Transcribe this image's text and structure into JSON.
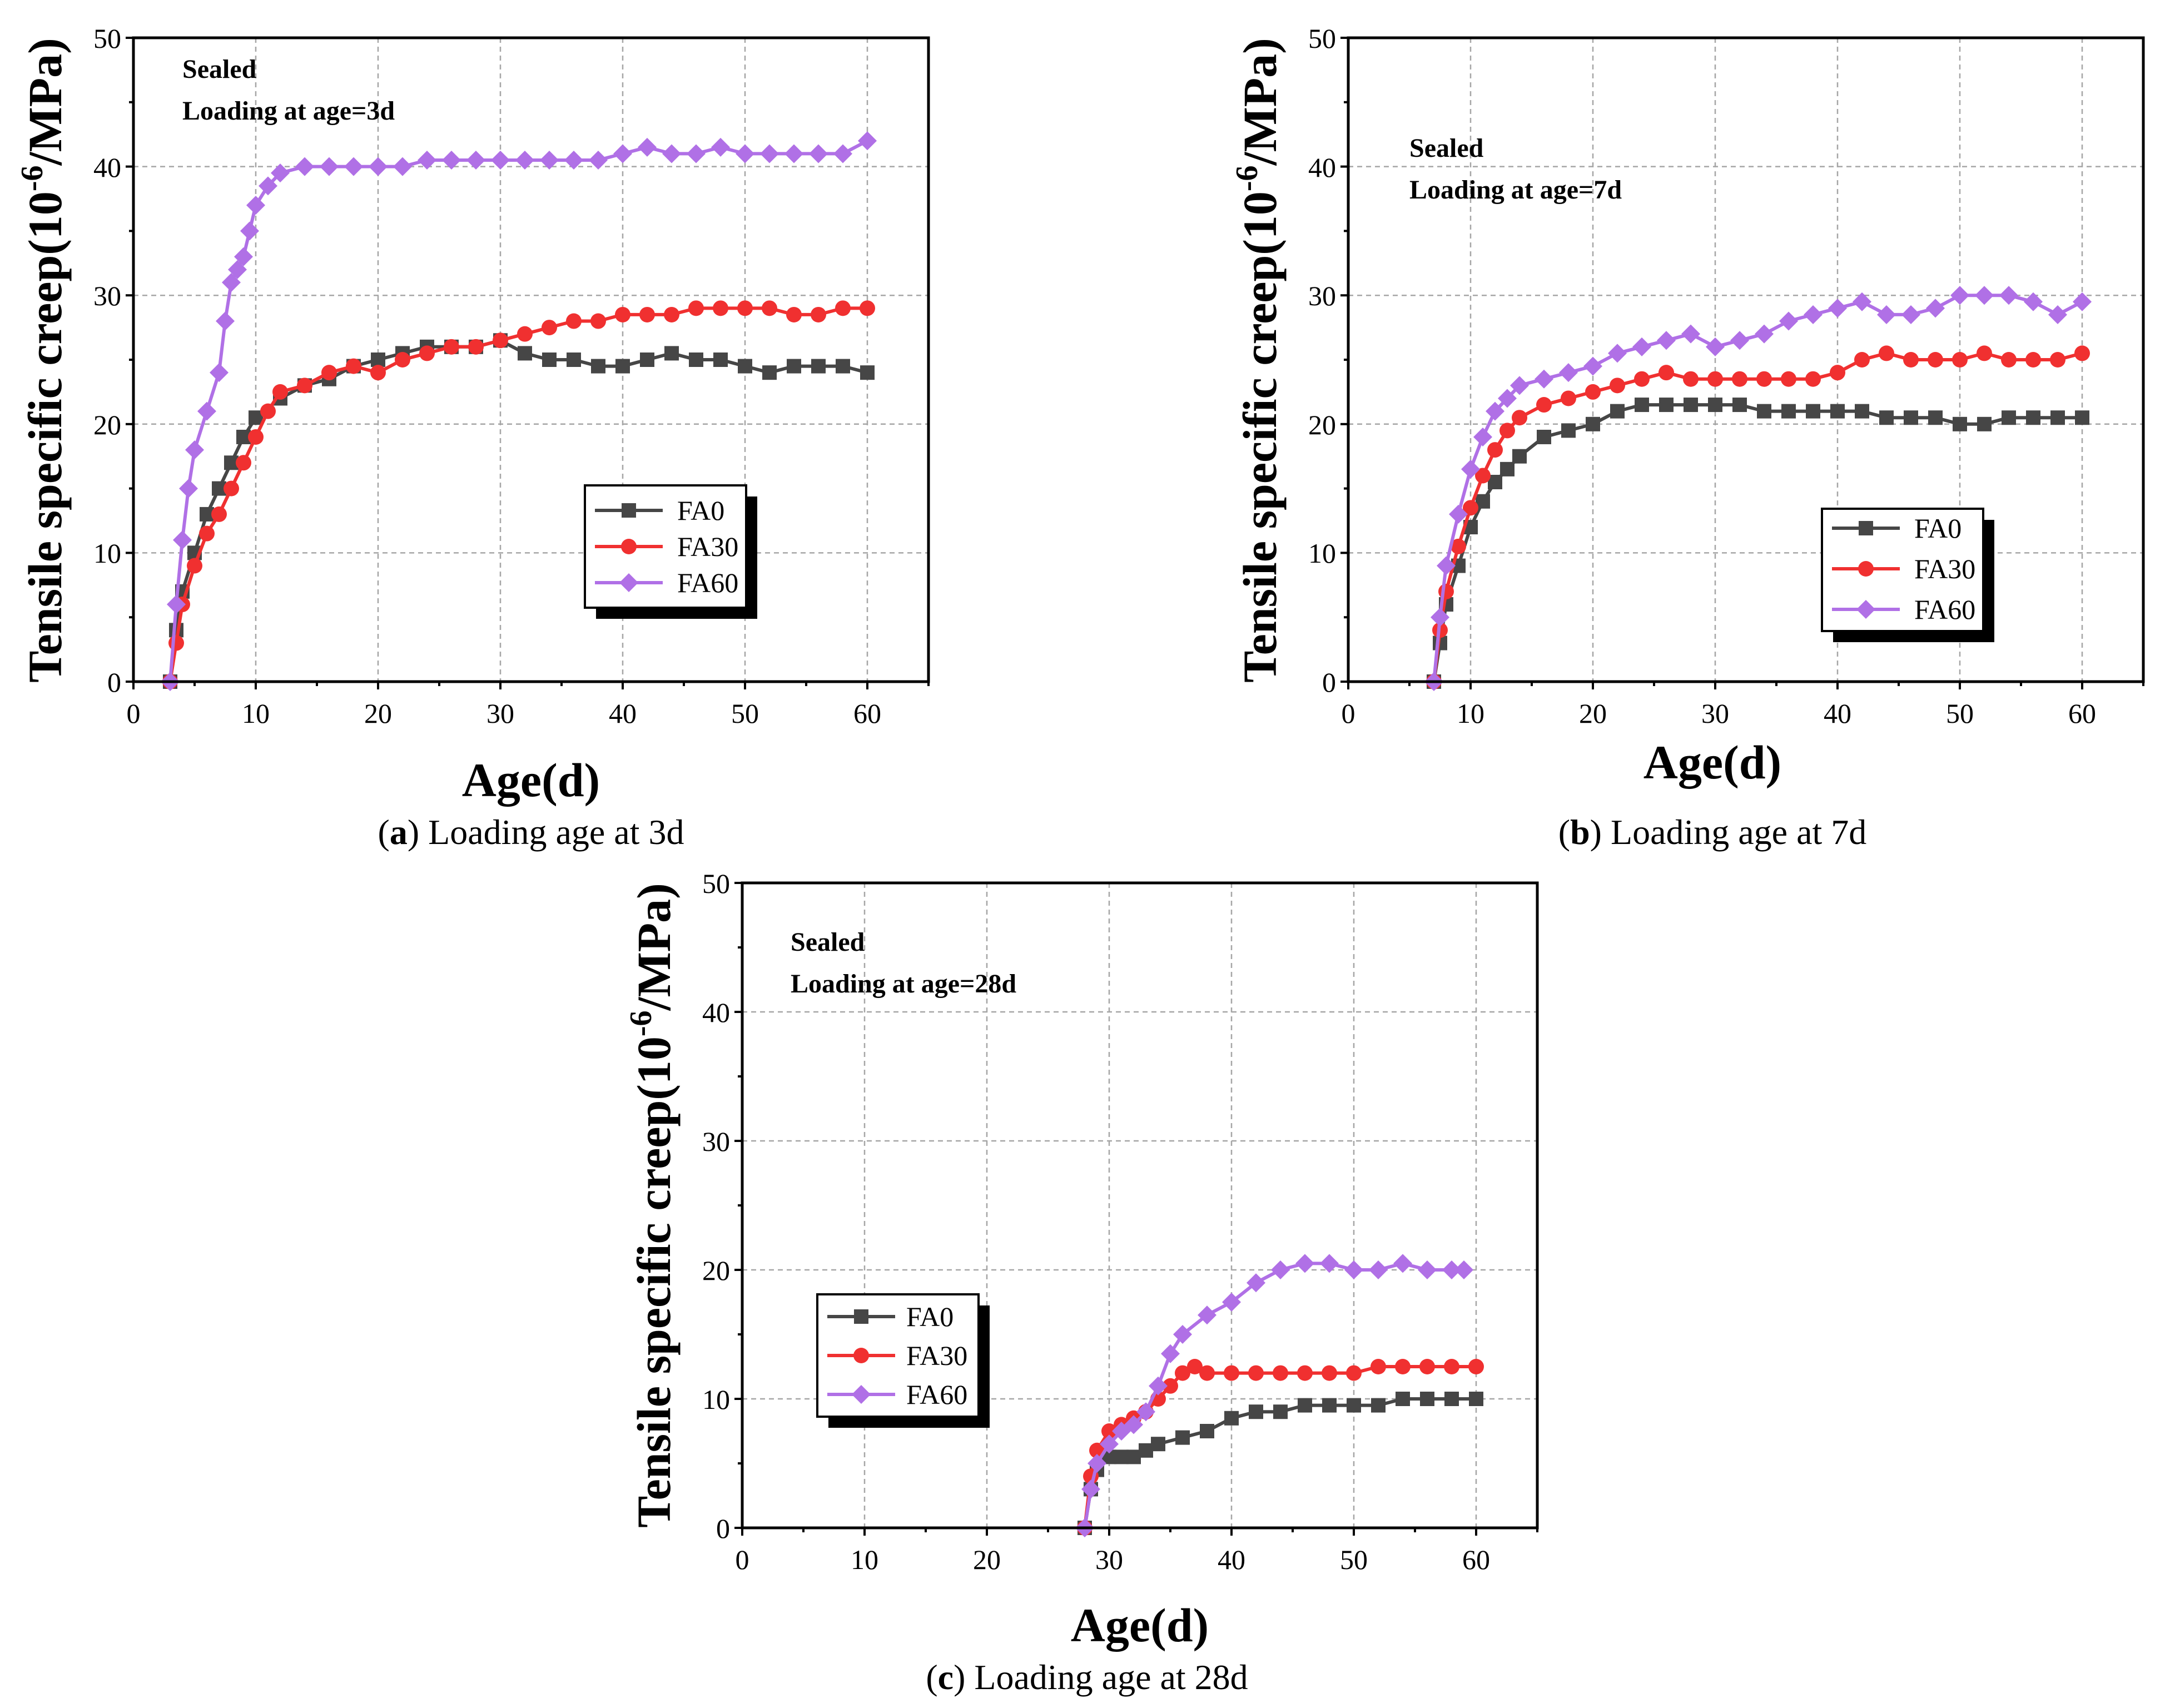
{
  "colors": {
    "FA0": "#464646",
    "FA30": "#f03030",
    "FA60": "#b070e6",
    "FA0_marker": "square",
    "FA30_marker": "circle",
    "FA60_marker": "diamond"
  },
  "chart_data": [
    {
      "id": "a",
      "type": "line",
      "xlabel": "Age(d)",
      "ylabel_prefix": "Tensile specific creep(10",
      "ylabel_sup": "-6",
      "ylabel_suffix": "/MPa)",
      "xlim": [
        0,
        65
      ],
      "ylim": [
        0,
        50
      ],
      "xticks": [
        "0",
        "10",
        "20",
        "30",
        "40",
        "50",
        "60"
      ],
      "yticks": [
        "0",
        "10",
        "20",
        "30",
        "40",
        "50"
      ],
      "annotation": [
        "Sealed",
        "Loading at age=3d"
      ],
      "legend_position": "center-right",
      "legend": [
        "FA0",
        "FA30",
        "FA60"
      ],
      "caption_letter": "a",
      "caption_text": "Loading age at 3d",
      "series": [
        {
          "name": "FA0",
          "x": [
            3,
            3.5,
            4,
            5,
            6,
            7,
            8,
            9,
            10,
            12,
            14,
            16,
            18,
            20,
            22,
            24,
            26,
            28,
            30,
            32,
            34,
            36,
            38,
            40,
            42,
            44,
            46,
            48,
            50,
            52,
            54,
            56,
            58,
            60
          ],
          "y": [
            0,
            4,
            7,
            10,
            13,
            15,
            17,
            19,
            20.5,
            22,
            23,
            23.5,
            24.5,
            25,
            25.5,
            26,
            26,
            26,
            26.5,
            25.5,
            25,
            25,
            24.5,
            24.5,
            25,
            25.5,
            25,
            25,
            24.5,
            24,
            24.5,
            24.5,
            24.5,
            24
          ]
        },
        {
          "name": "FA30",
          "x": [
            3,
            3.5,
            4,
            5,
            6,
            7,
            8,
            9,
            10,
            11,
            12,
            14,
            16,
            18,
            20,
            22,
            24,
            26,
            28,
            30,
            32,
            34,
            36,
            38,
            40,
            42,
            44,
            46,
            48,
            50,
            52,
            54,
            56,
            58,
            60
          ],
          "y": [
            0,
            3,
            6,
            9,
            11.5,
            13,
            15,
            17,
            19,
            21,
            22.5,
            23,
            24,
            24.5,
            24,
            25,
            25.5,
            26,
            26,
            26.5,
            27,
            27.5,
            28,
            28,
            28.5,
            28.5,
            28.5,
            29,
            29,
            29,
            29,
            28.5,
            28.5,
            29,
            29
          ]
        },
        {
          "name": "FA60",
          "x": [
            3,
            3.5,
            4,
            4.5,
            5,
            6,
            7,
            7.5,
            8,
            8.5,
            9,
            9.5,
            10,
            11,
            12,
            14,
            16,
            18,
            20,
            22,
            24,
            26,
            28,
            30,
            32,
            34,
            36,
            38,
            40,
            42,
            44,
            46,
            48,
            50,
            52,
            54,
            56,
            58,
            60
          ],
          "y": [
            0,
            6,
            11,
            15,
            18,
            21,
            24,
            28,
            31,
            32,
            33,
            35,
            37,
            38.5,
            39.5,
            40,
            40,
            40,
            40,
            40,
            40.5,
            40.5,
            40.5,
            40.5,
            40.5,
            40.5,
            40.5,
            40.5,
            41,
            41.5,
            41,
            41,
            41.5,
            41,
            41,
            41,
            41,
            41,
            42
          ]
        }
      ]
    },
    {
      "id": "b",
      "type": "line",
      "xlabel": "Age(d)",
      "ylabel_prefix": "Tensile specific creep(10",
      "ylabel_sup": "-6",
      "ylabel_suffix": "/MPa)",
      "xlim": [
        0,
        65
      ],
      "ylim": [
        0,
        50
      ],
      "xticks": [
        "0",
        "10",
        "20",
        "30",
        "40",
        "50",
        "60"
      ],
      "yticks": [
        "0",
        "10",
        "20",
        "30",
        "40",
        "50"
      ],
      "annotation": [
        "Sealed",
        "Loading at age=7d"
      ],
      "legend_position": "center-right",
      "legend": [
        "FA0",
        "FA30",
        "FA60"
      ],
      "caption_letter": "b",
      "caption_text": "Loading age at 7d",
      "series": [
        {
          "name": "FA0",
          "x": [
            7,
            7.5,
            8,
            9,
            10,
            11,
            12,
            13,
            14,
            16,
            18,
            20,
            22,
            24,
            26,
            28,
            30,
            32,
            34,
            36,
            38,
            40,
            42,
            44,
            46,
            48,
            50,
            52,
            54,
            56,
            58,
            60
          ],
          "y": [
            0,
            3,
            6,
            9,
            12,
            14,
            15.5,
            16.5,
            17.5,
            19,
            19.5,
            20,
            21,
            21.5,
            21.5,
            21.5,
            21.5,
            21.5,
            21,
            21,
            21,
            21,
            21,
            20.5,
            20.5,
            20.5,
            20,
            20,
            20.5,
            20.5,
            20.5,
            20.5
          ]
        },
        {
          "name": "FA30",
          "x": [
            7,
            7.5,
            8,
            9,
            10,
            11,
            12,
            13,
            14,
            16,
            18,
            20,
            22,
            24,
            26,
            28,
            30,
            32,
            34,
            36,
            38,
            40,
            42,
            44,
            46,
            48,
            50,
            52,
            54,
            56,
            58,
            60
          ],
          "y": [
            0,
            4,
            7,
            10.5,
            13.5,
            16,
            18,
            19.5,
            20.5,
            21.5,
            22,
            22.5,
            23,
            23.5,
            24,
            23.5,
            23.5,
            23.5,
            23.5,
            23.5,
            23.5,
            24,
            25,
            25.5,
            25,
            25,
            25,
            25.5,
            25,
            25,
            25,
            25.5
          ]
        },
        {
          "name": "FA60",
          "x": [
            7,
            7.5,
            8,
            9,
            10,
            11,
            12,
            13,
            14,
            16,
            18,
            20,
            22,
            24,
            26,
            28,
            30,
            32,
            34,
            36,
            38,
            40,
            42,
            44,
            46,
            48,
            50,
            52,
            54,
            56,
            58,
            60
          ],
          "y": [
            0,
            5,
            9,
            13,
            16.5,
            19,
            21,
            22,
            23,
            23.5,
            24,
            24.5,
            25.5,
            26,
            26.5,
            27,
            26,
            26.5,
            27,
            28,
            28.5,
            29,
            29.5,
            28.5,
            28.5,
            29,
            30,
            30,
            30,
            29.5,
            28.5,
            29.5
          ]
        }
      ]
    },
    {
      "id": "c",
      "type": "line",
      "xlabel": "Age(d)",
      "ylabel_prefix": "Tensile specific creep(10",
      "ylabel_sup": "-6",
      "ylabel_suffix": "/MPa)",
      "xlim": [
        0,
        65
      ],
      "ylim": [
        0,
        50
      ],
      "xticks": [
        "0",
        "10",
        "20",
        "30",
        "40",
        "50",
        "60"
      ],
      "yticks": [
        "0",
        "10",
        "20",
        "30",
        "40",
        "50"
      ],
      "annotation": [
        "Sealed",
        "Loading at age=28d"
      ],
      "legend_position": "center-left",
      "legend": [
        "FA0",
        "FA30",
        "FA60"
      ],
      "caption_letter": "c",
      "caption_text": "Loading age at 28d",
      "series": [
        {
          "name": "FA0",
          "x": [
            28,
            28.5,
            29,
            30,
            31,
            32,
            33,
            34,
            36,
            38,
            40,
            42,
            44,
            46,
            48,
            50,
            52,
            54,
            56,
            58,
            60
          ],
          "y": [
            0,
            3,
            4.5,
            5.5,
            5.5,
            5.5,
            6,
            6.5,
            7,
            7.5,
            8.5,
            9,
            9,
            9.5,
            9.5,
            9.5,
            9.5,
            10,
            10,
            10,
            10
          ]
        },
        {
          "name": "FA30",
          "x": [
            28,
            28.5,
            29,
            30,
            31,
            32,
            33,
            34,
            35,
            36,
            37,
            38,
            40,
            42,
            44,
            46,
            48,
            50,
            52,
            54,
            56,
            58,
            60
          ],
          "y": [
            0,
            4,
            6,
            7.5,
            8,
            8.5,
            9,
            10,
            11,
            12,
            12.5,
            12,
            12,
            12,
            12,
            12,
            12,
            12,
            12.5,
            12.5,
            12.5,
            12.5,
            12.5
          ]
        },
        {
          "name": "FA60",
          "x": [
            28,
            28.5,
            29,
            30,
            31,
            32,
            33,
            34,
            35,
            36,
            38,
            40,
            42,
            44,
            46,
            48,
            50,
            52,
            54,
            56,
            58,
            59
          ],
          "y": [
            0,
            3,
            5,
            6.5,
            7.5,
            8,
            9,
            11,
            13.5,
            15,
            16.5,
            17.5,
            19,
            20,
            20.5,
            20.5,
            20,
            20,
            20.5,
            20,
            20,
            20
          ]
        }
      ]
    }
  ]
}
